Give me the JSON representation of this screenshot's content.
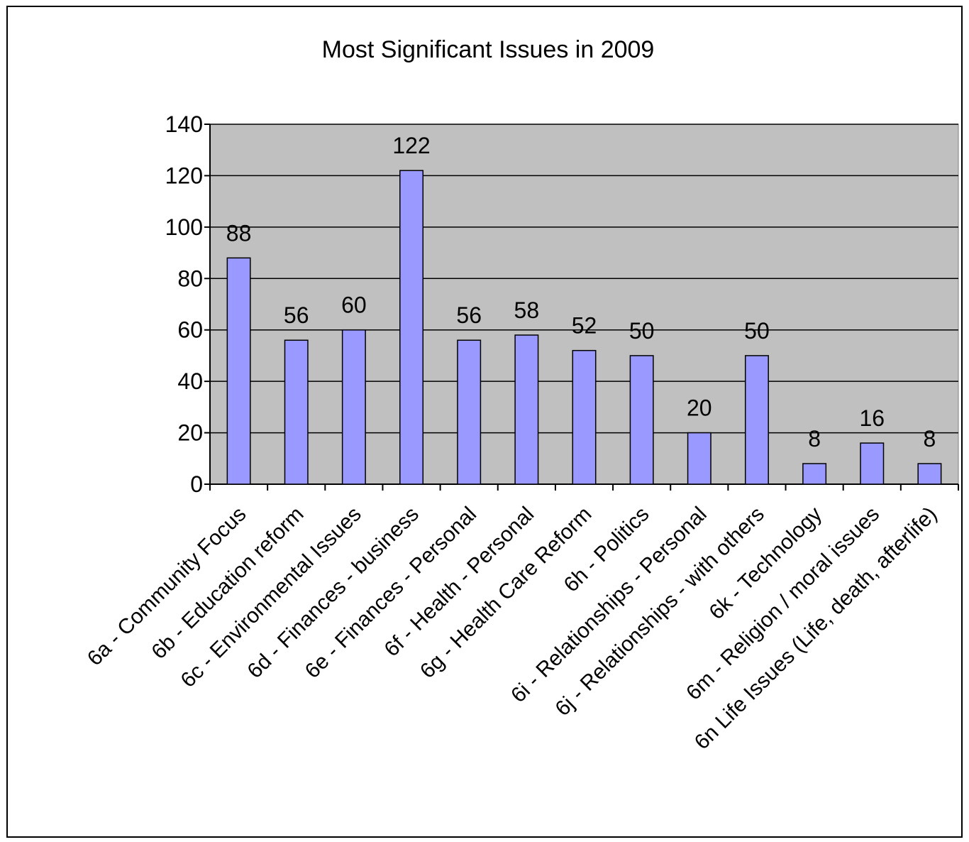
{
  "chart_data": {
    "type": "bar",
    "title": "Most Significant Issues in 2009",
    "xlabel": "",
    "ylabel": "",
    "categories": [
      "6a - Community Focus",
      "6b - Education reform",
      "6c - Environmental Issues",
      "6d - Finances - business",
      "6e - Finances - Personal",
      "6f - Health - Personal",
      "6g - Health Care Reform",
      "6h - Politics",
      "6i - Relationships - Personal",
      "6j - Relationships - with others",
      "6k - Technology",
      "6m - Religion / moral issues",
      "6n Life Issues (Life, death, afterlife)"
    ],
    "values": [
      88,
      56,
      60,
      122,
      56,
      58,
      52,
      50,
      20,
      50,
      8,
      16,
      8
    ],
    "data_labels": [
      "88",
      "56",
      "60",
      "122",
      "56",
      "58",
      "52",
      "50",
      "20",
      "50",
      "8",
      "16",
      "8"
    ],
    "ylim": [
      0,
      140
    ],
    "yticks": [
      0,
      20,
      40,
      60,
      80,
      100,
      120,
      140
    ],
    "ytick_labels": [
      "0",
      "20",
      "40",
      "60",
      "80",
      "100",
      "120",
      "140"
    ],
    "grid": true,
    "legend": "none",
    "colors": {
      "bar_fill": "#9999ff",
      "bar_stroke": "#000000",
      "plot_background": "#c0c0c0",
      "gridline": "#000000"
    }
  }
}
